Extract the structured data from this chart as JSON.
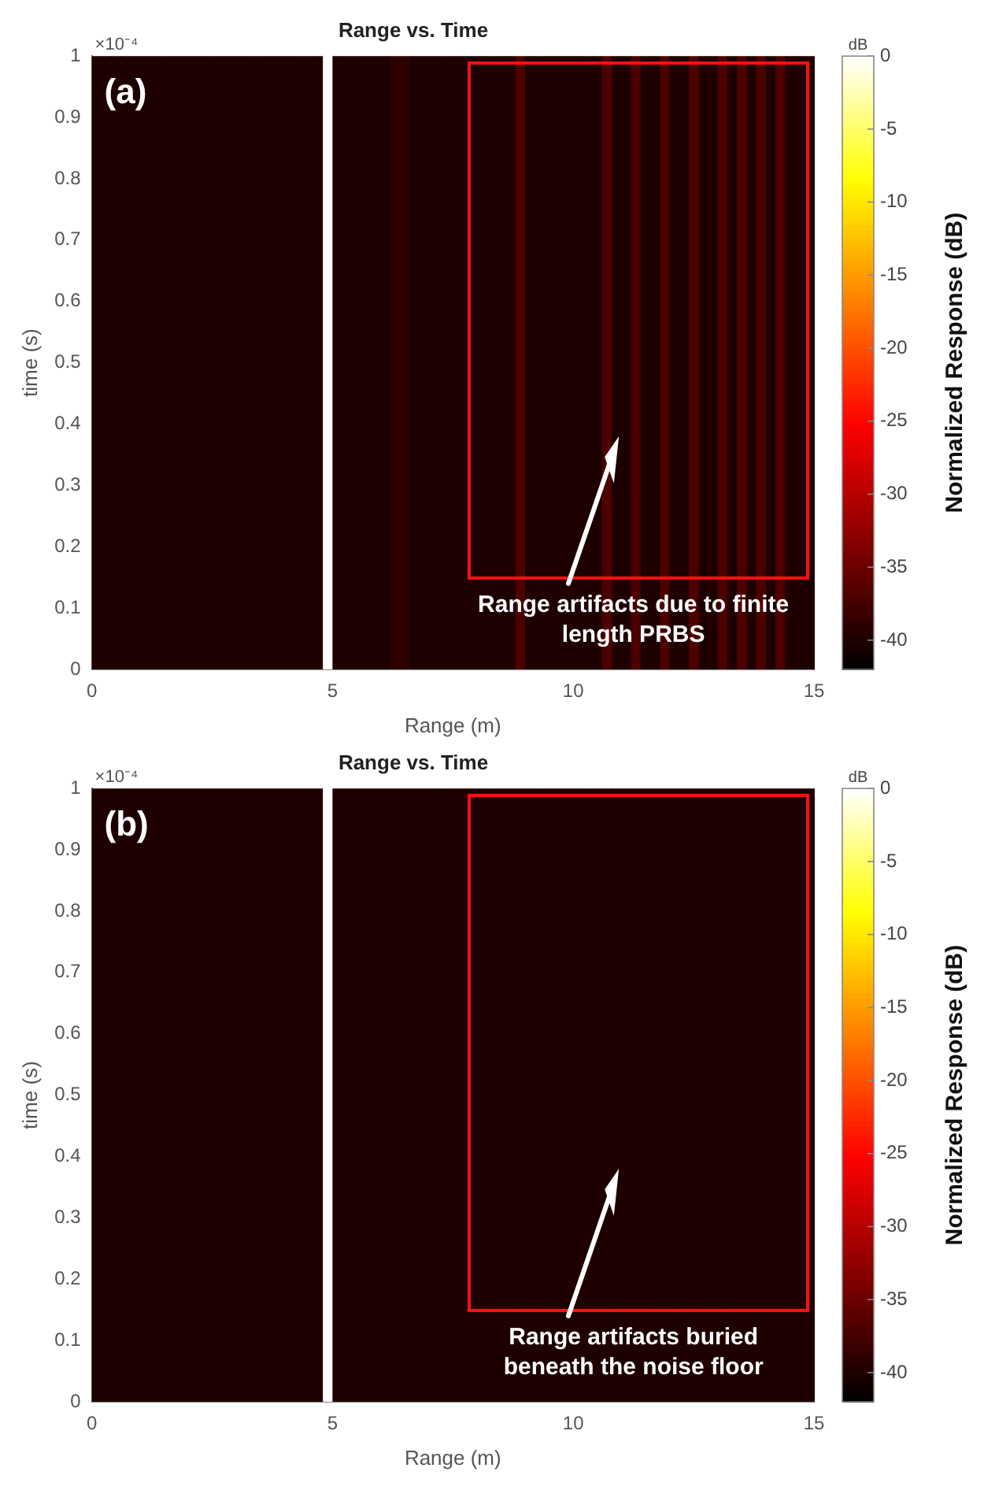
{
  "chart_data": [
    {
      "type": "heatmap",
      "title": "Range vs. Time",
      "xlabel": "Range (m)",
      "ylabel": "time (s)",
      "clabel": "Normalized Response (dB)",
      "annotations": [
        "(a)",
        "×10⁻⁴",
        "dB",
        "Range artifacts due to finite length PRBS"
      ],
      "xlim": [
        0,
        15
      ],
      "xticks": [
        0,
        5,
        10,
        15
      ],
      "ylim": [
        0,
        1
      ],
      "yticks": [
        0,
        0.1,
        0.2,
        0.3,
        0.4,
        0.5,
        0.6,
        0.7,
        0.8,
        0.9,
        1
      ],
      "clim": [
        -42,
        0
      ],
      "cticks": [
        0,
        -5,
        -10,
        -15,
        -20,
        -25,
        -30,
        -35,
        -40
      ],
      "cells": [
        [
          -40,
          -40,
          -40,
          -40,
          -40,
          -40,
          -40,
          -40,
          -40,
          -40,
          -40,
          -40,
          -40,
          -40,
          -40,
          -40,
          -40,
          -40,
          -40,
          -40,
          -40,
          -40,
          -40,
          -40,
          0,
          -40,
          -40,
          -40,
          -40,
          -40,
          -40,
          -39,
          -39,
          -40,
          -40,
          -40,
          -40,
          -40,
          -40,
          -40,
          -40,
          -40,
          -40,
          -40,
          -37,
          -40,
          -40,
          -40,
          -40,
          -40,
          -40,
          -40,
          -40,
          -37,
          -40,
          -40,
          -37,
          -40,
          -40,
          -37,
          -40,
          -40,
          -37,
          -40,
          -40,
          -37,
          -40,
          -37,
          -40,
          -37,
          -40,
          -37,
          -40,
          -40,
          -40
        ]
      ]
    },
    {
      "type": "heatmap",
      "title": "Range vs. Time",
      "xlabel": "Range (m)",
      "ylabel": "time (s)",
      "clabel": "Normalized Response (dB)",
      "annotations": [
        "(b)",
        "×10⁻⁴",
        "dB",
        "Range artifacts buried beneath the noise floor"
      ],
      "xlim": [
        0,
        15
      ],
      "xticks": [
        0,
        5,
        10,
        15
      ],
      "ylim": [
        0,
        1
      ],
      "yticks": [
        0,
        0.1,
        0.2,
        0.3,
        0.4,
        0.5,
        0.6,
        0.7,
        0.8,
        0.9,
        1
      ],
      "clim": [
        -42,
        0
      ],
      "cticks": [
        0,
        -5,
        -10,
        -15,
        -20,
        -25,
        -30,
        -35,
        -40
      ],
      "cells": [
        [
          -40,
          -40,
          -40,
          -40,
          -40,
          -40,
          -40,
          -40,
          -40,
          -40,
          -40,
          -40,
          -40,
          -40,
          -40,
          -40,
          -40,
          -40,
          -40,
          -40,
          -40,
          -40,
          -40,
          -40,
          0,
          -40,
          -40,
          -40,
          -40,
          -40,
          -40,
          -40,
          -40,
          -40,
          -40,
          -40,
          -40,
          -40,
          -40,
          -40,
          -40,
          -40,
          -40,
          -40,
          -40,
          -40,
          -40,
          -40,
          -40,
          -40,
          -40,
          -40,
          -40,
          -40,
          -40,
          -40,
          -40,
          -40,
          -40,
          -40,
          -40,
          -40,
          -40,
          -40,
          -40,
          -40,
          -40,
          -40,
          -40,
          -40,
          -40,
          -40,
          -40,
          -40,
          -40
        ]
      ]
    }
  ]
}
